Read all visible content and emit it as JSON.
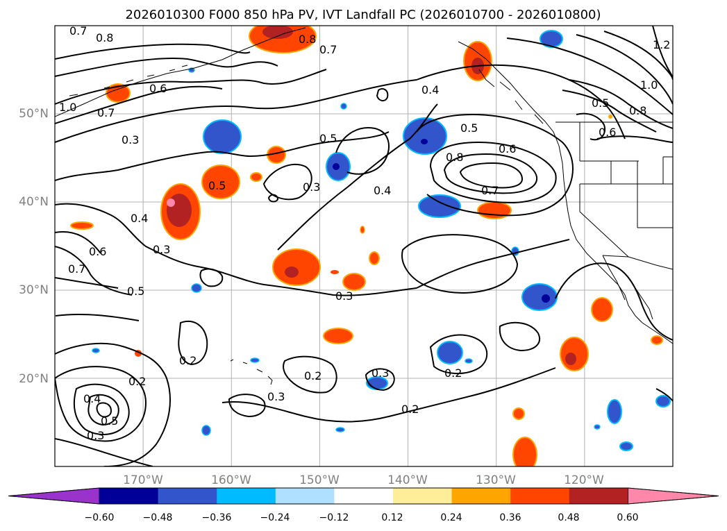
{
  "title": "2026010300 F000 850 hPa PV, IVT Landfall PC (2026010700 - 2026010800)",
  "lat_labels": [
    "50°N",
    "40°N",
    "30°N",
    "20°N"
  ],
  "lon_labels": [
    "170°W",
    "160°W",
    "150°W",
    "140°W",
    "130°W",
    "120°W"
  ],
  "contour_labels": [
    "0.7",
    "0.8",
    "0.6",
    "1.0",
    "0.7",
    "0.8",
    "0.7",
    "0.4",
    "0.5",
    "0.6",
    "0.8",
    "0.7",
    "0.5",
    "0.8",
    "1.0",
    "1.2",
    "0.5",
    "0.3",
    "0.5",
    "0.3",
    "0.4",
    "0.4",
    "0.3",
    "0.6",
    "0.7",
    "0.5",
    "0.3",
    "0.2",
    "0.2",
    "0.3",
    "0.3",
    "0.2",
    "0.2",
    "0.4",
    "0.5",
    "0.3",
    "0.2",
    "0.6"
  ],
  "colorbar": {
    "ticks": [
      "−0.60",
      "−0.48",
      "−0.36",
      "−0.24",
      "−0.12",
      "0.12",
      "0.24",
      "0.36",
      "0.48",
      "0.60"
    ],
    "colors": [
      "#9933cc",
      "#000099",
      "#3355cc",
      "#00bbff",
      "#b0e0ff",
      "#ffffff",
      "#ffee99",
      "#ffa500",
      "#ff4500",
      "#b22222",
      "#ff88aa"
    ]
  },
  "chart_data": {
    "type": "heatmap",
    "title": "2026010300 F000 850 hPa PV, IVT Landfall PC (2026010700 - 2026010800)",
    "projection": "PlateCarree",
    "lon_range": [
      "180°W",
      "110°W"
    ],
    "lat_range": [
      "10°N",
      "60°N"
    ],
    "gridlines": true,
    "filled_field": "IVT Landfall PC",
    "contour_field": "850 hPa PV",
    "contour_levels": [
      0.2,
      0.3,
      0.4,
      0.5,
      0.6,
      0.7,
      0.8,
      1.0,
      1.2
    ],
    "color_levels": [
      -0.6,
      -0.48,
      -0.36,
      -0.24,
      -0.12,
      0.12,
      0.24,
      0.36,
      0.48,
      0.6
    ],
    "colorbar_extend": "both"
  }
}
